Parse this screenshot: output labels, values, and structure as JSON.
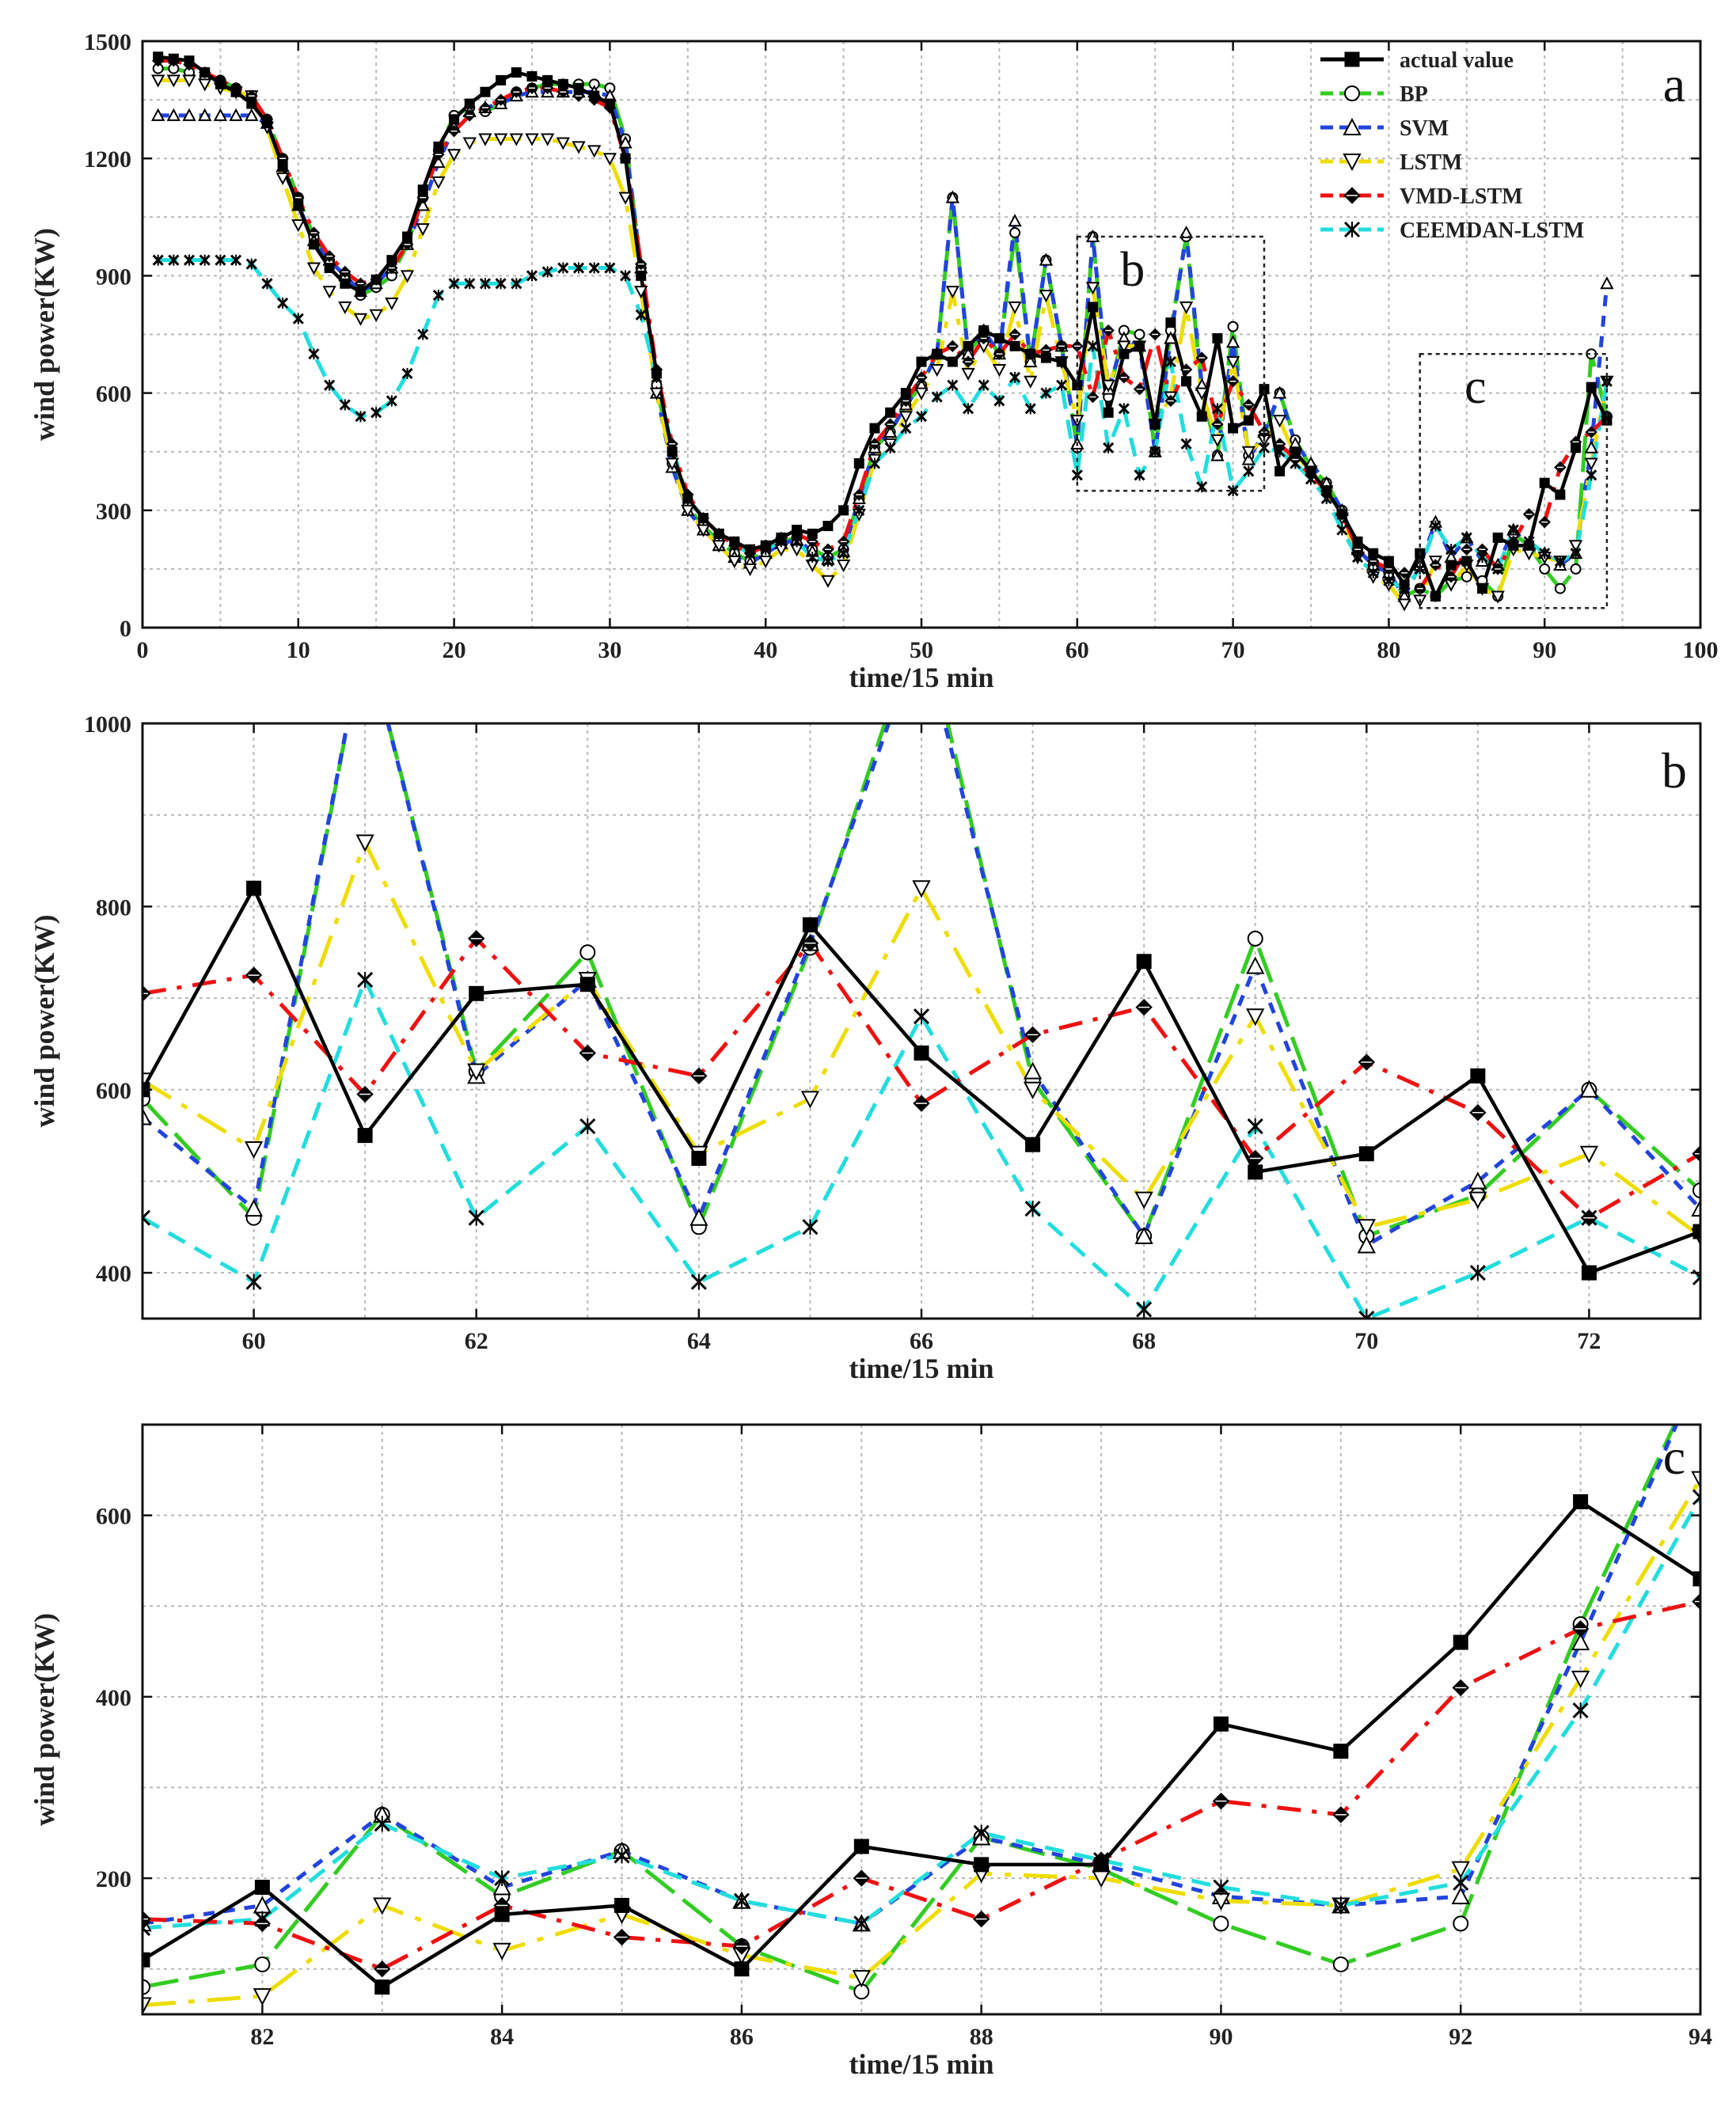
{
  "chart_data": [
    {
      "type": "line",
      "panel_label": "a",
      "xlabel": "time/15 min",
      "ylabel": "wind power(KW)",
      "xlim": [
        0,
        100
      ],
      "ylim": [
        0,
        1500
      ],
      "xticks": [
        0,
        10,
        20,
        30,
        40,
        50,
        60,
        70,
        80,
        90,
        100
      ],
      "yticks": [
        0,
        300,
        600,
        900,
        1200,
        1500
      ],
      "legend_position": "top-right",
      "zoom_boxes": [
        {
          "label": "b",
          "x_range": [
            60,
            72
          ],
          "y_range": [
            350,
            1000
          ]
        },
        {
          "label": "c",
          "x_range": [
            82,
            94
          ],
          "y_range": [
            50,
            700
          ]
        }
      ],
      "x": [
        1,
        2,
        3,
        4,
        5,
        6,
        7,
        8,
        9,
        10,
        11,
        12,
        13,
        14,
        15,
        16,
        17,
        18,
        19,
        20,
        21,
        22,
        23,
        24,
        25,
        26,
        27,
        28,
        29,
        30,
        31,
        32,
        33,
        34,
        35,
        36,
        37,
        38,
        39,
        40,
        41,
        42,
        43,
        44,
        45,
        46,
        47,
        48,
        49,
        50,
        51,
        52,
        53,
        54,
        55,
        56,
        57,
        58,
        59,
        60,
        61,
        62,
        63,
        64,
        65,
        66,
        67,
        68,
        69,
        70,
        71,
        72,
        73,
        74,
        75,
        76,
        77,
        78,
        79,
        80,
        81,
        82,
        83,
        84,
        85,
        86,
        87,
        88,
        89,
        90,
        91,
        92,
        93,
        94
      ],
      "series": [
        {
          "name": "actual value",
          "color": "#000000",
          "marker": "filled-square",
          "values": [
            1460,
            1455,
            1450,
            1420,
            1390,
            1370,
            1340,
            1290,
            1180,
            1080,
            980,
            920,
            880,
            860,
            890,
            940,
            1000,
            1120,
            1230,
            1300,
            1340,
            1370,
            1400,
            1420,
            1410,
            1400,
            1390,
            1380,
            1360,
            1340,
            1200,
            900,
            650,
            450,
            330,
            280,
            240,
            220,
            200,
            210,
            230,
            250,
            240,
            260,
            300,
            420,
            510,
            550,
            600,
            680,
            700,
            680,
            720,
            760,
            740,
            720,
            700,
            690,
            680,
            620,
            820,
            550,
            700,
            720,
            520,
            780,
            630,
            540,
            740,
            510,
            530,
            610,
            400,
            450,
            400,
            350,
            290,
            220,
            190,
            170,
            110,
            190,
            80,
            160,
            170,
            100,
            230,
            210,
            210,
            370,
            340,
            460,
            615,
            530
          ]
        },
        {
          "name": "BP",
          "color": "#33cc22",
          "marker": "open-circle",
          "values": [
            1430,
            1430,
            1420,
            1410,
            1400,
            1380,
            1360,
            1300,
            1200,
            1100,
            1000,
            940,
            900,
            850,
            870,
            900,
            980,
            1100,
            1220,
            1310,
            1330,
            1320,
            1340,
            1370,
            1380,
            1390,
            1390,
            1390,
            1390,
            1380,
            1250,
            920,
            620,
            420,
            310,
            260,
            220,
            190,
            170,
            200,
            220,
            230,
            200,
            180,
            200,
            330,
            460,
            500,
            570,
            620,
            700,
            1100,
            700,
            760,
            700,
            1010,
            680,
            940,
            720,
            460,
            1000,
            590,
            760,
            750,
            450,
            760,
            1000,
            610,
            440,
            770,
            440,
            490,
            600,
            480,
            410,
            370,
            300,
            200,
            160,
            140,
            80,
            100,
            80,
            120,
            130,
            120,
            80,
            240,
            210,
            150,
            100,
            150,
            700,
            540
          ]
        },
        {
          "name": "SVM",
          "color": "#2244dd",
          "marker": "open-triangle-up",
          "values": [
            1310,
            1310,
            1310,
            1310,
            1310,
            1310,
            1310,
            1290,
            1180,
            1080,
            990,
            940,
            900,
            860,
            880,
            920,
            980,
            1080,
            1190,
            1280,
            1320,
            1330,
            1340,
            1360,
            1370,
            1370,
            1370,
            1370,
            1370,
            1360,
            1240,
            920,
            600,
            410,
            300,
            250,
            210,
            180,
            165,
            190,
            215,
            225,
            195,
            175,
            195,
            330,
            460,
            500,
            570,
            620,
            700,
            1100,
            700,
            760,
            700,
            1040,
            680,
            940,
            720,
            470,
            1000,
            610,
            740,
            720,
            450,
            740,
            1010,
            620,
            440,
            730,
            430,
            500,
            600,
            470,
            420,
            370,
            300,
            200,
            160,
            140,
            80,
            160,
            270,
            180,
            230,
            170,
            160,
            250,
            210,
            190,
            160,
            190,
            460,
            880
          ]
        },
        {
          "name": "LSTM",
          "color": "#eedd00",
          "marker": "open-triangle-down",
          "values": [
            1400,
            1400,
            1400,
            1390,
            1380,
            1370,
            1360,
            1280,
            1150,
            1030,
            920,
            860,
            820,
            790,
            800,
            830,
            900,
            1020,
            1140,
            1210,
            1240,
            1250,
            1250,
            1250,
            1250,
            1250,
            1240,
            1230,
            1220,
            1200,
            1100,
            860,
            600,
            420,
            300,
            250,
            210,
            170,
            150,
            170,
            200,
            200,
            160,
            120,
            160,
            290,
            430,
            470,
            540,
            600,
            660,
            860,
            650,
            720,
            660,
            820,
            630,
            850,
            680,
            530,
            870,
            620,
            720,
            720,
            520,
            590,
            820,
            600,
            480,
            680,
            450,
            480,
            530,
            440,
            400,
            350,
            280,
            180,
            130,
            110,
            60,
            70,
            170,
            110,
            160,
            100,
            80,
            200,
            190,
            180,
            170,
            210,
            420,
            630
          ]
        },
        {
          "name": "VMD-LSTM",
          "color": "#ee1111",
          "marker": "filled-diamond",
          "values": [
            1450,
            1450,
            1440,
            1420,
            1400,
            1380,
            1360,
            1300,
            1200,
            1100,
            1010,
            950,
            910,
            880,
            890,
            920,
            980,
            1100,
            1210,
            1270,
            1310,
            1330,
            1350,
            1370,
            1380,
            1380,
            1370,
            1360,
            1350,
            1330,
            1200,
            930,
            660,
            470,
            340,
            280,
            240,
            210,
            190,
            210,
            230,
            240,
            220,
            200,
            220,
            340,
            470,
            520,
            580,
            640,
            700,
            720,
            680,
            740,
            700,
            750,
            700,
            710,
            720,
            720,
            590,
            760,
            640,
            610,
            750,
            580,
            660,
            690,
            520,
            630,
            570,
            500,
            470,
            430,
            390,
            350,
            290,
            200,
            170,
            150,
            140,
            100,
            160,
            130,
            200,
            200,
            150,
            220,
            290,
            270,
            410,
            475,
            500,
            540
          ]
        },
        {
          "name": "CEEMDAN-LSTM",
          "color": "#22dddd",
          "marker": "asterisk",
          "values": [
            940,
            940,
            940,
            940,
            940,
            940,
            930,
            880,
            830,
            790,
            700,
            620,
            570,
            540,
            550,
            580,
            650,
            750,
            850,
            880,
            880,
            880,
            880,
            880,
            900,
            910,
            920,
            920,
            920,
            920,
            900,
            800,
            640,
            460,
            330,
            280,
            240,
            210,
            190,
            200,
            220,
            220,
            180,
            170,
            190,
            300,
            420,
            460,
            510,
            540,
            590,
            620,
            560,
            620,
            580,
            640,
            560,
            600,
            620,
            390,
            720,
            460,
            560,
            390,
            450,
            680,
            470,
            360,
            560,
            350,
            400,
            460,
            450,
            420,
            380,
            330,
            250,
            180,
            140,
            120,
            100,
            150,
            260,
            200,
            230,
            180,
            150,
            250,
            220,
            190,
            170,
            190,
            390,
            630
          ]
        }
      ]
    },
    {
      "type": "line",
      "panel_label": "b",
      "xlabel": "time/15 min",
      "ylabel": "wind power(KW)",
      "xlim": [
        59,
        73
      ],
      "ylim": [
        350,
        1000
      ],
      "xticks": [
        60,
        62,
        64,
        66,
        68,
        70,
        72
      ],
      "yticks": [
        400,
        600,
        800,
        1000
      ],
      "x": [
        59,
        60,
        61,
        62,
        63,
        64,
        65,
        66,
        67,
        68,
        69,
        70,
        71,
        72,
        73
      ],
      "series": [
        {
          "name": "actual value",
          "color": "#000000",
          "marker": "filled-square",
          "values": [
            600,
            820,
            550,
            705,
            715,
            525,
            780,
            640,
            540,
            740,
            510,
            530,
            615,
            400,
            445
          ]
        },
        {
          "name": "BP",
          "color": "#33cc22",
          "marker": "open-circle",
          "values": [
            590,
            460,
            1100,
            620,
            750,
            450,
            755,
            1120,
            610,
            440,
            765,
            440,
            485,
            600,
            490
          ]
        },
        {
          "name": "SVM",
          "color": "#2244dd",
          "marker": "open-triangle-up",
          "values": [
            570,
            470,
            1100,
            615,
            720,
            460,
            760,
            1100,
            620,
            440,
            735,
            430,
            500,
            600,
            470
          ]
        },
        {
          "name": "LSTM",
          "color": "#eedd00",
          "marker": "open-triangle-down",
          "values": [
            610,
            535,
            870,
            620,
            720,
            530,
            590,
            820,
            600,
            480,
            680,
            450,
            480,
            530,
            440
          ]
        },
        {
          "name": "VMD-LSTM",
          "color": "#ee1111",
          "marker": "filled-diamond",
          "values": [
            705,
            725,
            595,
            765,
            640,
            615,
            760,
            585,
            660,
            690,
            525,
            630,
            575,
            460,
            530
          ]
        },
        {
          "name": "CEEMDAN-LSTM",
          "color": "#22dddd",
          "marker": "asterisk",
          "values": [
            460,
            390,
            720,
            460,
            560,
            390,
            450,
            680,
            470,
            360,
            560,
            350,
            400,
            460,
            395
          ]
        }
      ]
    },
    {
      "type": "line",
      "panel_label": "c",
      "xlabel": "time/15 min",
      "ylabel": "wind power(KW)",
      "xlim": [
        81,
        94
      ],
      "ylim": [
        50,
        700
      ],
      "xticks": [
        82,
        84,
        86,
        88,
        90,
        92,
        94
      ],
      "yticks": [
        200,
        400,
        600
      ],
      "x": [
        81,
        82,
        83,
        84,
        85,
        86,
        87,
        88,
        89,
        90,
        91,
        92,
        93,
        94
      ],
      "series": [
        {
          "name": "actual value",
          "color": "#000000",
          "marker": "filled-square",
          "values": [
            110,
            190,
            80,
            160,
            170,
            100,
            235,
            215,
            215,
            370,
            340,
            460,
            615,
            530
          ]
        },
        {
          "name": "BP",
          "color": "#33cc22",
          "marker": "open-circle",
          "values": [
            80,
            105,
            270,
            180,
            230,
            125,
            75,
            245,
            210,
            150,
            105,
            150,
            480,
            760
          ]
        },
        {
          "name": "SVM",
          "color": "#2244dd",
          "marker": "open-triangle-up",
          "values": [
            150,
            170,
            270,
            190,
            230,
            175,
            150,
            245,
            215,
            180,
            170,
            180,
            460,
            760
          ]
        },
        {
          "name": "LSTM",
          "color": "#eedd00",
          "marker": "open-triangle-down",
          "values": [
            60,
            70,
            170,
            120,
            160,
            115,
            90,
            205,
            200,
            175,
            170,
            210,
            420,
            640
          ]
        },
        {
          "name": "VMD-LSTM",
          "color": "#ee1111",
          "marker": "filled-diamond",
          "values": [
            155,
            150,
            100,
            170,
            135,
            125,
            200,
            155,
            220,
            285,
            270,
            410,
            475,
            505
          ]
        },
        {
          "name": "CEEMDAN-LSTM",
          "color": "#22dddd",
          "marker": "asterisk",
          "values": [
            145,
            155,
            260,
            200,
            225,
            175,
            150,
            250,
            220,
            190,
            170,
            195,
            385,
            620
          ]
        }
      ]
    }
  ]
}
